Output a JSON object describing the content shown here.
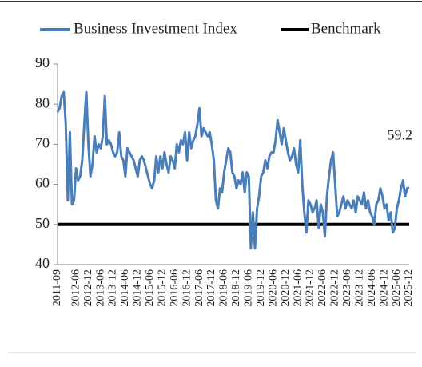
{
  "chart_data": {
    "type": "line",
    "categories": [
      "2011-09",
      null,
      null,
      null,
      null,
      null,
      null,
      null,
      null,
      "2012-06",
      null,
      null,
      null,
      null,
      null,
      "2012-12",
      null,
      null,
      null,
      null,
      null,
      "2013-06",
      null,
      null,
      null,
      null,
      null,
      "2013-12",
      null,
      null,
      null,
      null,
      null,
      "2014-06",
      null,
      null,
      null,
      null,
      null,
      "2014-12",
      null,
      null,
      null,
      null,
      null,
      "2015-06",
      null,
      null,
      null,
      null,
      null,
      "2015-12",
      null,
      null,
      null,
      null,
      null,
      "2016-06",
      null,
      null,
      null,
      null,
      null,
      "2016-12",
      null,
      null,
      null,
      null,
      null,
      "2017-06",
      null,
      null,
      null,
      null,
      null,
      "2017-12",
      null,
      null,
      null,
      null,
      null,
      "2018-06",
      null,
      null,
      null,
      null,
      null,
      "2018-12",
      null,
      null,
      null,
      null,
      null,
      "2019-06",
      null,
      null,
      null,
      null,
      null,
      "2019-12",
      null,
      null,
      null,
      null,
      null,
      "2020-06",
      null,
      null,
      null,
      null,
      null,
      "2020-12",
      null,
      null,
      null,
      null,
      null,
      "2021-06",
      null,
      null,
      null,
      null,
      null,
      "2021-12",
      null,
      null,
      null,
      null,
      null,
      "2022-06",
      null,
      null,
      null,
      null,
      null,
      "2022-12",
      null,
      null,
      null,
      null,
      null,
      "2023-06",
      null,
      null,
      null,
      null,
      null,
      "2023-12",
      null,
      null,
      null,
      null,
      null,
      "2024-06",
      null,
      null,
      null,
      null,
      null,
      "2024-12",
      null,
      null,
      null,
      null,
      null,
      "2025-06",
      null,
      null,
      null,
      null,
      null,
      "2025-12"
    ],
    "series": [
      {
        "name": "Business Investment Index",
        "color": "#4a7ebb",
        "values": [
          78,
          79,
          82,
          83,
          75,
          56,
          73,
          55,
          56,
          64,
          61,
          62,
          66,
          75,
          83,
          70,
          62,
          65,
          72,
          68,
          70,
          69,
          72,
          82,
          70,
          71,
          70,
          68,
          67,
          68,
          73,
          67,
          66,
          62,
          69,
          68,
          67,
          66,
          64,
          62,
          66,
          67,
          66,
          64,
          62,
          60,
          59,
          61,
          67,
          63,
          67,
          64,
          68,
          65,
          63,
          67,
          66,
          64,
          70,
          68,
          71,
          70,
          73,
          66,
          73,
          69,
          71,
          72,
          75,
          79,
          72,
          74,
          73,
          72,
          73,
          70,
          66,
          56,
          54,
          59,
          58,
          63,
          66,
          69,
          68,
          63,
          62,
          59,
          61,
          60,
          63,
          58,
          63,
          62,
          44,
          53,
          44,
          54,
          57,
          62,
          63,
          66,
          64,
          67,
          68,
          68,
          71,
          76,
          73,
          70,
          74,
          71,
          68,
          66,
          67,
          69,
          65,
          63,
          71,
          60,
          53,
          48,
          56,
          55,
          53,
          54,
          56,
          49,
          55,
          53,
          47,
          57,
          62,
          66,
          68,
          60,
          52,
          53,
          55,
          57,
          54,
          56,
          55,
          54,
          56,
          53,
          57,
          56,
          55,
          58,
          54,
          56,
          53,
          52,
          50,
          55,
          56,
          59,
          57,
          54,
          55,
          51,
          53,
          48,
          49,
          54,
          56,
          59,
          61,
          57,
          59,
          59.2
        ]
      }
    ],
    "benchmark": {
      "name": "Benchmark",
      "value": 50,
      "color": "#000000"
    },
    "ylim": [
      40,
      90
    ],
    "yticks": [
      40,
      50,
      60,
      70,
      80,
      90
    ],
    "grid": false
  }
}
